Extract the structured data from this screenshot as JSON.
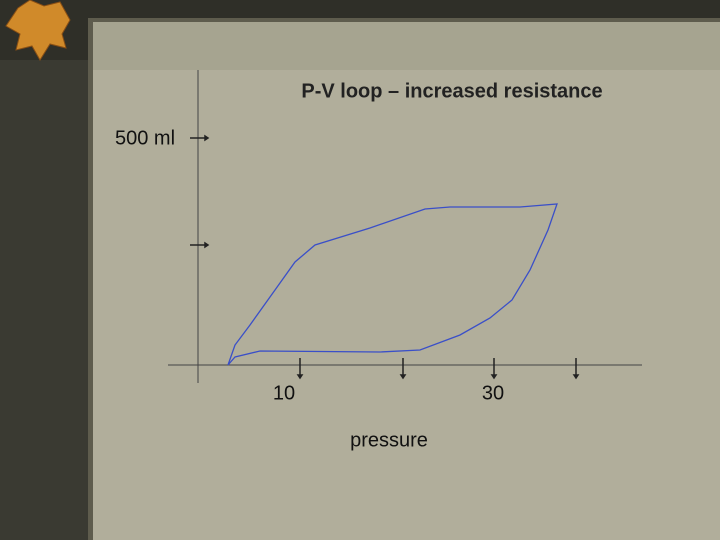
{
  "slide": {
    "title": "P-V loop – increased resistance",
    "y_label": "500 ml",
    "x_labels": [
      "10",
      "30"
    ],
    "x_title": "pressure"
  }
}
